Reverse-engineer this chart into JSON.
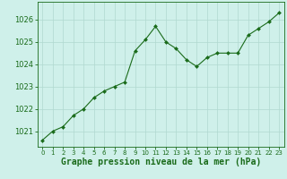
{
  "x": [
    0,
    1,
    2,
    3,
    4,
    5,
    6,
    7,
    8,
    9,
    10,
    11,
    12,
    13,
    14,
    15,
    16,
    17,
    18,
    19,
    20,
    21,
    22,
    23
  ],
  "y": [
    1020.6,
    1021.0,
    1021.2,
    1021.7,
    1022.0,
    1022.5,
    1022.8,
    1023.0,
    1023.2,
    1024.6,
    1025.1,
    1025.7,
    1025.0,
    1024.7,
    1024.2,
    1023.9,
    1024.3,
    1024.5,
    1024.5,
    1024.5,
    1025.3,
    1025.6,
    1025.9,
    1026.3
  ],
  "line_color": "#1a6b1a",
  "marker_color": "#1a6b1a",
  "bg_color": "#cff0ea",
  "grid_color": "#b0d8d0",
  "xlabel": "Graphe pression niveau de la mer (hPa)",
  "xlabel_color": "#1a6b1a",
  "ylabel_ticks": [
    1021,
    1022,
    1023,
    1024,
    1025,
    1026
  ],
  "xtick_labels": [
    "0",
    "1",
    "2",
    "3",
    "4",
    "5",
    "6",
    "7",
    "8",
    "9",
    "10",
    "11",
    "12",
    "13",
    "14",
    "15",
    "16",
    "17",
    "18",
    "19",
    "20",
    "21",
    "22",
    "23"
  ],
  "ylim": [
    1020.3,
    1026.8
  ],
  "xlim": [
    -0.5,
    23.5
  ],
  "tick_color": "#1a6b1a",
  "spine_color": "#1a6b1a",
  "font_size_xlabel": 7.0,
  "font_size_ytick": 6.0,
  "font_size_xtick": 5.0
}
